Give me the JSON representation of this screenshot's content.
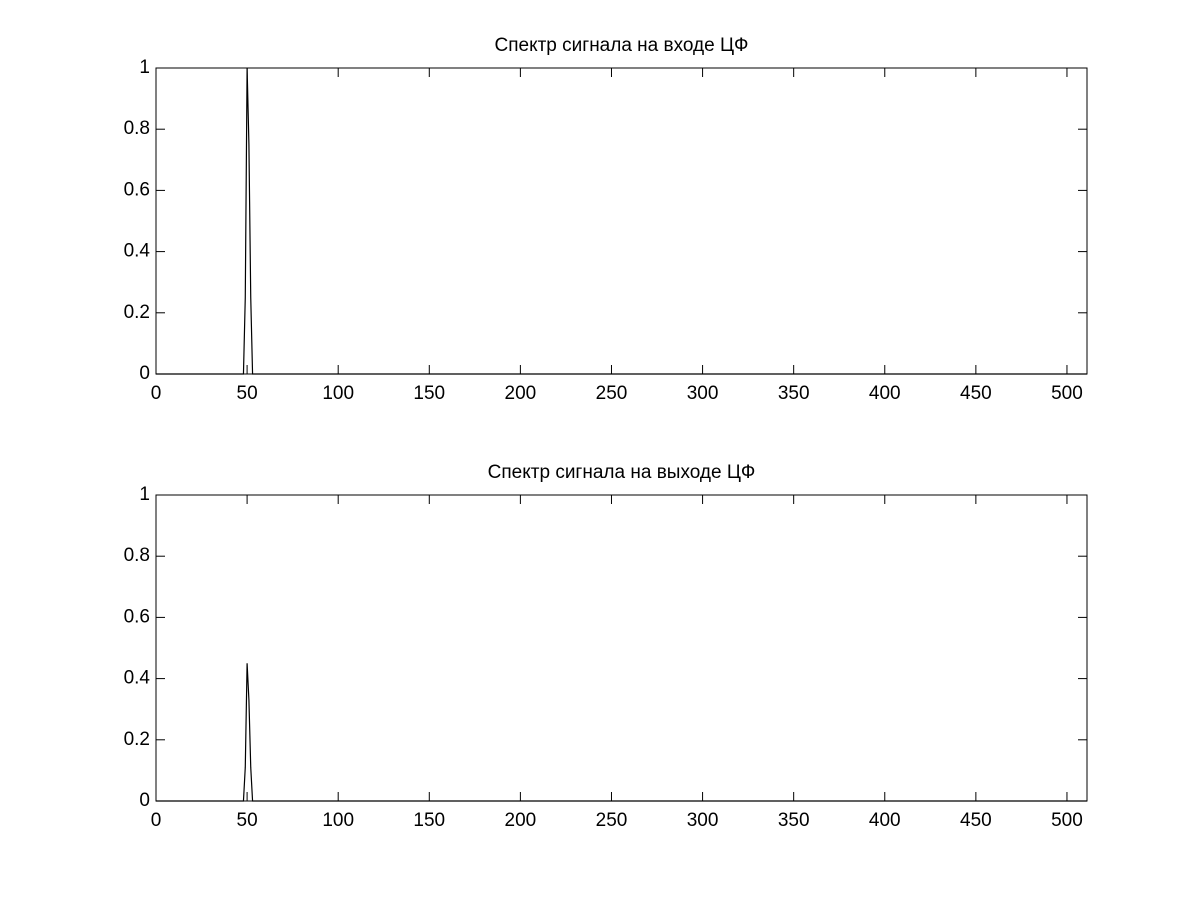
{
  "chart_data": [
    {
      "type": "line",
      "title": "Спектр сигнала на входе ЦФ",
      "series": [
        {
          "color": "#000000",
          "x": [
            0,
            48,
            49,
            50,
            51,
            52,
            53,
            511
          ],
          "values": [
            0,
            0,
            0.25,
            1,
            0.75,
            0.25,
            0,
            0
          ]
        }
      ],
      "xlim": [
        0,
        511
      ],
      "ylim": [
        0,
        1
      ],
      "xticks": [
        0,
        50,
        100,
        150,
        200,
        250,
        300,
        350,
        400,
        450,
        500
      ],
      "yticks": [
        0,
        0.2,
        0.4,
        0.6,
        0.8,
        1
      ]
    },
    {
      "type": "line",
      "title": "Спектр сигнала на выходе ЦФ",
      "series": [
        {
          "color": "#000000",
          "x": [
            0,
            48,
            49,
            50,
            51,
            52,
            53,
            511
          ],
          "values": [
            0,
            0,
            0.11,
            0.45,
            0.33,
            0.11,
            0,
            0
          ]
        }
      ],
      "xlim": [
        0,
        511
      ],
      "ylim": [
        0,
        1
      ],
      "xticks": [
        0,
        50,
        100,
        150,
        200,
        250,
        300,
        350,
        400,
        450,
        500
      ],
      "yticks": [
        0,
        0.2,
        0.4,
        0.6,
        0.8,
        1
      ]
    }
  ]
}
